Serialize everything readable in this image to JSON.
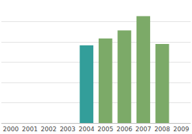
{
  "chart_data": {
    "type": "bar",
    "categories": [
      "2000",
      "2001",
      "2002",
      "2003",
      "2004",
      "2005",
      "2006",
      "2007",
      "2008",
      "2009"
    ],
    "values": [
      null,
      null,
      null,
      null,
      3.83,
      4.17,
      4.57,
      5.27,
      3.9,
      null
    ],
    "colors": [
      null,
      null,
      null,
      null,
      "#339e9a",
      "#7caa68",
      "#7caa68",
      "#7caa68",
      "#7caa68",
      null
    ],
    "ylim": [
      0,
      6
    ],
    "yticks": [
      0,
      1,
      2,
      3,
      4,
      5,
      6
    ],
    "grid": true,
    "tick_labels": "x"
  }
}
